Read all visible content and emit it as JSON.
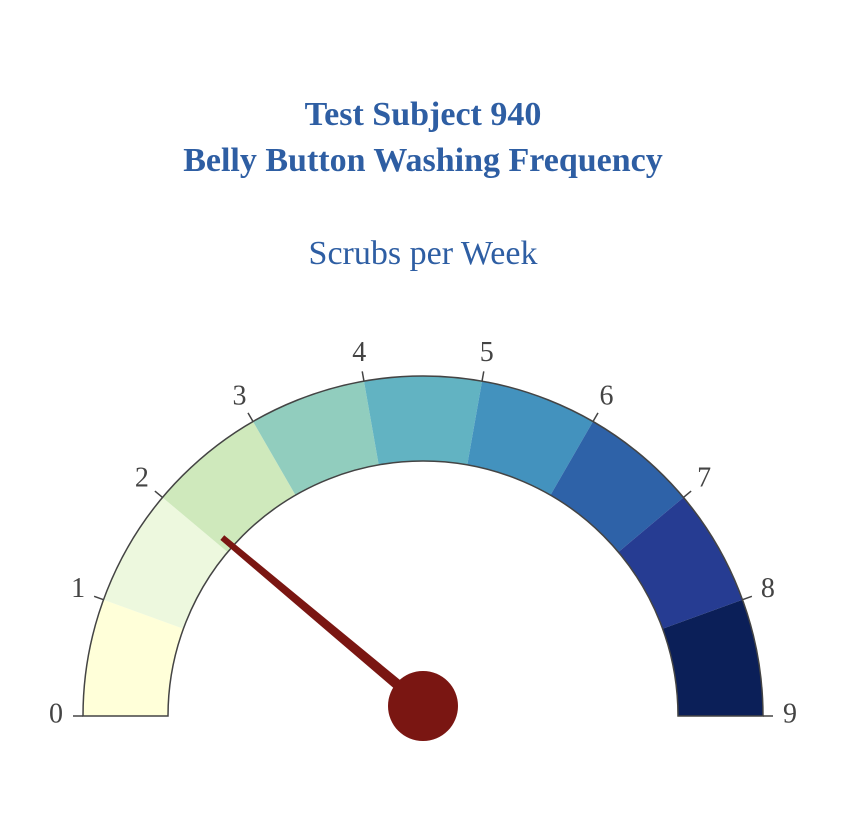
{
  "header": {
    "title_line1": "Test Subject 940",
    "title_line2": "Belly Button Washing Frequency",
    "subtitle": "Scrubs per Week"
  },
  "chart_data": {
    "type": "gauge",
    "range": [
      0,
      9
    ],
    "value": 2.0,
    "tick_labels": [
      "0",
      "1",
      "2",
      "3",
      "4",
      "5",
      "6",
      "7",
      "8",
      "9"
    ],
    "bands": [
      {
        "from": 0,
        "to": 1,
        "color": "#ffffd9"
      },
      {
        "from": 1,
        "to": 2,
        "color": "#edf8de"
      },
      {
        "from": 2,
        "to": 3,
        "color": "#cfe9bc"
      },
      {
        "from": 3,
        "to": 4,
        "color": "#91cdbe"
      },
      {
        "from": 4,
        "to": 5,
        "color": "#62b3c2"
      },
      {
        "from": 5,
        "to": 6,
        "color": "#4392be"
      },
      {
        "from": 6,
        "to": 7,
        "color": "#2e62a8"
      },
      {
        "from": 7,
        "to": 8,
        "color": "#263c92"
      },
      {
        "from": 8,
        "to": 9,
        "color": "#0b1f58"
      }
    ],
    "needle_color": "#7a1612",
    "title_color": "#2e5ea3"
  }
}
